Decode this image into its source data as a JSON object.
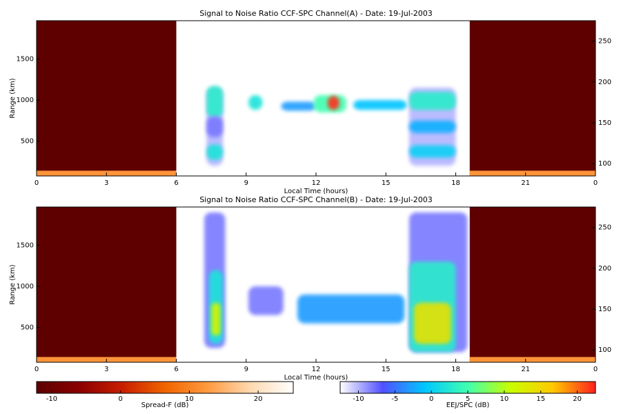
{
  "chart_data": [
    {
      "type": "heatmap",
      "title": "Signal to Noise Ratio CCF-SPC Channel(A) - Date: 19-Jul-2003",
      "xlabel": "Local Time (hours)",
      "ylabel": "Range (km)",
      "xlim": [
        0,
        24
      ],
      "xticks": [
        0,
        3,
        6,
        9,
        12,
        15,
        18,
        21,
        {
          "value": 24,
          "label": "0"
        }
      ],
      "ylim": [
        76,
        1966
      ],
      "yticks": [
        500,
        1000,
        1500
      ],
      "y2lim": [
        85,
        275
      ],
      "y2ticks": [
        100,
        150,
        200,
        250
      ],
      "spread_f": [
        {
          "x0": 0,
          "x1": 6,
          "y0": 76,
          "y1": 1966,
          "value": -12
        },
        {
          "x0": 18.6,
          "x1": 24,
          "y0": 76,
          "y1": 1966,
          "value": -12
        },
        {
          "x0": 0,
          "x1": 6,
          "y0": 80,
          "y1": 140,
          "value": 12
        },
        {
          "x0": 18.6,
          "x1": 24,
          "y0": 80,
          "y1": 140,
          "value": 12
        }
      ],
      "eej_spc": [
        {
          "x0": 7.3,
          "x1": 8.0,
          "y0": 200,
          "y1": 1150,
          "value": -10
        },
        {
          "x0": 7.3,
          "x1": 8.0,
          "y0": 790,
          "y1": 1170,
          "value": 3
        },
        {
          "x0": 7.3,
          "x1": 8.0,
          "y0": 270,
          "y1": 460,
          "value": 2
        },
        {
          "x0": 7.3,
          "x1": 8.0,
          "y0": 550,
          "y1": 800,
          "value": -8
        },
        {
          "x0": 9.1,
          "x1": 9.7,
          "y0": 880,
          "y1": 1060,
          "value": 2
        },
        {
          "x0": 10.5,
          "x1": 12.0,
          "y0": 870,
          "y1": 980,
          "value": -3
        },
        {
          "x0": 11.9,
          "x1": 13.3,
          "y0": 850,
          "y1": 1060,
          "value": 5
        },
        {
          "x0": 12.5,
          "x1": 13.0,
          "y0": 880,
          "y1": 1050,
          "value": 22
        },
        {
          "x0": 13.6,
          "x1": 15.9,
          "y0": 880,
          "y1": 1000,
          "value": -1
        },
        {
          "x0": 16.0,
          "x1": 18.0,
          "y0": 200,
          "y1": 1150,
          "value": -10
        },
        {
          "x0": 16.0,
          "x1": 18.0,
          "y0": 880,
          "y1": 1100,
          "value": 3
        },
        {
          "x0": 16.0,
          "x1": 18.0,
          "y0": 300,
          "y1": 450,
          "value": 0
        },
        {
          "x0": 16.0,
          "x1": 18.0,
          "y0": 600,
          "y1": 750,
          "value": -2
        }
      ]
    },
    {
      "type": "heatmap",
      "title": "Signal to Noise Ratio CCF-SPC Channel(B) - Date: 19-Jul-2003",
      "xlabel": "Local Time (hours)",
      "ylabel": "Range (km)",
      "xlim": [
        0,
        24
      ],
      "xticks": [
        0,
        3,
        6,
        9,
        12,
        15,
        18,
        21,
        {
          "value": 24,
          "label": "0"
        }
      ],
      "ylim": [
        76,
        1966
      ],
      "yticks": [
        500,
        1000,
        1500
      ],
      "y2lim": [
        85,
        275
      ],
      "y2ticks": [
        100,
        150,
        200,
        250
      ],
      "spread_f": [
        {
          "x0": 0,
          "x1": 6,
          "y0": 76,
          "y1": 1966,
          "value": -12
        },
        {
          "x0": 18.6,
          "x1": 24,
          "y0": 76,
          "y1": 1966,
          "value": -12
        },
        {
          "x0": 0,
          "x1": 6,
          "y0": 80,
          "y1": 140,
          "value": 12
        },
        {
          "x0": 18.6,
          "x1": 24,
          "y0": 80,
          "y1": 140,
          "value": 12
        }
      ],
      "eej_spc": [
        {
          "x0": 7.2,
          "x1": 8.1,
          "y0": 250,
          "y1": 1900,
          "value": -8
        },
        {
          "x0": 7.4,
          "x1": 8.0,
          "y0": 300,
          "y1": 1200,
          "value": 2
        },
        {
          "x0": 7.5,
          "x1": 7.9,
          "y0": 400,
          "y1": 800,
          "value": 12
        },
        {
          "x0": 9.1,
          "x1": 10.6,
          "y0": 650,
          "y1": 1000,
          "value": -8
        },
        {
          "x0": 11.2,
          "x1": 15.8,
          "y0": 550,
          "y1": 900,
          "value": -3
        },
        {
          "x0": 16.0,
          "x1": 18.5,
          "y0": 200,
          "y1": 1900,
          "value": -8
        },
        {
          "x0": 16.0,
          "x1": 18.0,
          "y0": 200,
          "y1": 1300,
          "value": 3
        },
        {
          "x0": 16.2,
          "x1": 17.8,
          "y0": 300,
          "y1": 800,
          "value": 14
        }
      ]
    },
    {
      "type": "colorbar",
      "label": "Spread-F (dB)",
      "xlim": [
        -12.2,
        25.1
      ],
      "xticks": [
        -10,
        0,
        10,
        20
      ],
      "colors": [
        "#5c0000",
        "#8b0000",
        "#c81e00",
        "#f06400",
        "#ff9a40",
        "#ffd9b0",
        "#ffffff"
      ]
    },
    {
      "type": "colorbar",
      "label": "EEJ/SPC (dB)",
      "xlim": [
        -12.5,
        22.5
      ],
      "xticks": [
        -10,
        -5,
        0,
        5,
        10,
        15,
        20
      ],
      "colors": [
        "#ffffff",
        "#5050ff",
        "#00c8ff",
        "#40ffb0",
        "#c8ff00",
        "#ffc800",
        "#ff2020"
      ]
    }
  ]
}
